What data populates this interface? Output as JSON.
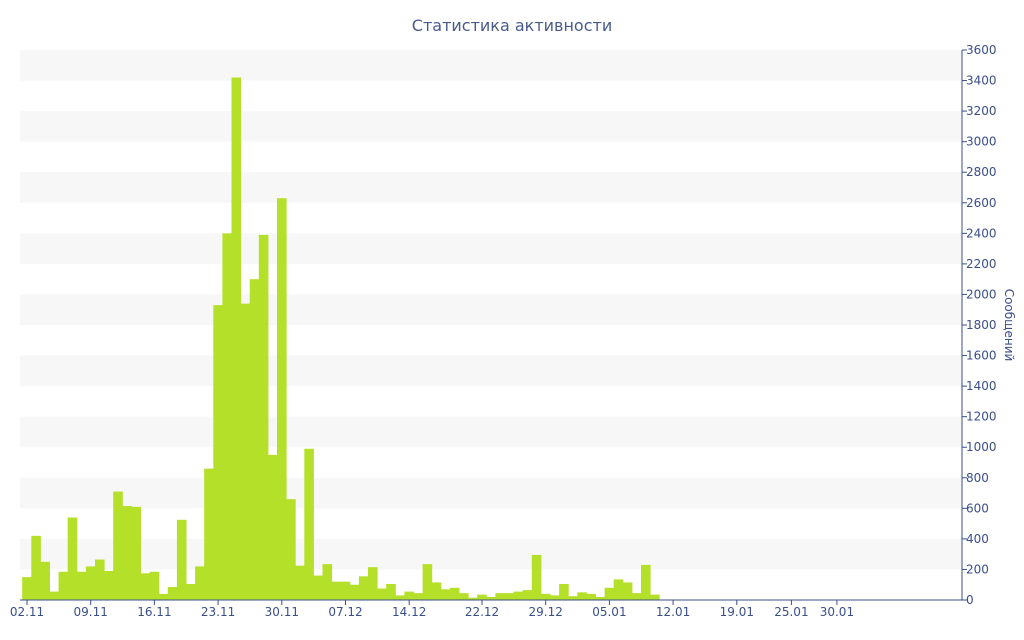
{
  "chart_data": {
    "type": "bar",
    "title": "Статистика активности",
    "ylabel": "Сообщений",
    "xlabel": "",
    "ylim": [
      0,
      3600
    ],
    "yticks": [
      0,
      200,
      400,
      600,
      800,
      1000,
      1200,
      1400,
      1600,
      1800,
      2000,
      2200,
      2400,
      2600,
      2800,
      3000,
      3200,
      3400,
      3600
    ],
    "y_axis_side": "right",
    "grid": "alternating horizontal bands",
    "bar_color": "#b5e02a",
    "x_ticks": [
      {
        "label": "02.11",
        "index": 0
      },
      {
        "label": "09.11",
        "index": 7
      },
      {
        "label": "16.11",
        "index": 14
      },
      {
        "label": "23.11",
        "index": 21
      },
      {
        "label": "30.11",
        "index": 28
      },
      {
        "label": "07.12",
        "index": 35
      },
      {
        "label": "14.12",
        "index": 42
      },
      {
        "label": "22.12",
        "index": 50
      },
      {
        "label": "29.12",
        "index": 57
      },
      {
        "label": "05.01",
        "index": 64
      },
      {
        "label": "12.01",
        "index": 71
      },
      {
        "label": "19.01",
        "index": 78
      },
      {
        "label": "25.01",
        "index": 84
      },
      {
        "label": "30.01",
        "index": 89
      }
    ],
    "values": [
      150,
      420,
      250,
      55,
      185,
      540,
      185,
      220,
      265,
      190,
      710,
      615,
      610,
      175,
      185,
      40,
      85,
      525,
      105,
      220,
      860,
      1930,
      2400,
      3420,
      1940,
      2100,
      2390,
      950,
      2630,
      660,
      225,
      990,
      160,
      235,
      120,
      120,
      100,
      155,
      215,
      75,
      105,
      30,
      55,
      45,
      235,
      115,
      70,
      80,
      45,
      15,
      35,
      20,
      45,
      45,
      55,
      65,
      295,
      40,
      30,
      105,
      25,
      50,
      40,
      20,
      80,
      135,
      115,
      45,
      230,
      35
    ]
  }
}
